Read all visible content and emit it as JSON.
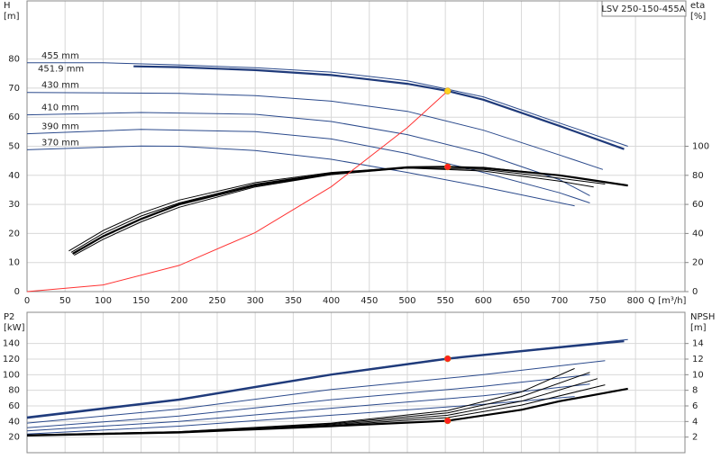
{
  "title": "LSV 250-150-455A",
  "chart_data": [
    {
      "type": "line",
      "ylabel": "H",
      "yunit": "[m]",
      "y2label": "eta",
      "y2unit": "[%]",
      "xlabel": "Q [m³/h]",
      "xlim": [
        0,
        865
      ],
      "ylim": [
        0,
        100
      ],
      "y2lim": [
        0,
        200
      ],
      "xticks": [
        0,
        50,
        100,
        150,
        200,
        250,
        300,
        350,
        400,
        450,
        500,
        550,
        600,
        650,
        700,
        750,
        800
      ],
      "yticks": [
        0,
        10,
        20,
        30,
        40,
        50,
        60,
        70,
        80
      ],
      "y2ticks": [
        0,
        20,
        40,
        60,
        80,
        100
      ],
      "grid": true,
      "series": [
        {
          "name": "455 mm",
          "color": "#2b4a8c",
          "x": [
            0,
            100,
            200,
            300,
            400,
            500,
            600,
            700,
            790
          ],
          "values": [
            78.7,
            78.7,
            78,
            77,
            75.5,
            72.5,
            67,
            58,
            50
          ]
        },
        {
          "name": "451.9 mm",
          "color": "#1f3a7a",
          "emphasis": true,
          "x": [
            140,
            200,
            300,
            400,
            500,
            553,
            600,
            700,
            785
          ],
          "values": [
            77.5,
            77.2,
            76.2,
            74.5,
            71.5,
            69,
            66,
            57,
            49
          ]
        },
        {
          "name": "430 mm",
          "color": "#2b4a8c",
          "x": [
            0,
            200,
            300,
            400,
            500,
            600,
            700,
            757
          ],
          "values": [
            68.5,
            68.2,
            67.4,
            65.5,
            62,
            55.5,
            47,
            42
          ]
        },
        {
          "name": "410 mm",
          "color": "#2b4a8c",
          "x": [
            0,
            150,
            300,
            400,
            500,
            600,
            700,
            740
          ],
          "values": [
            60.8,
            61.6,
            61,
            58.5,
            54,
            47.5,
            38.5,
            33
          ]
        },
        {
          "name": "390 mm",
          "color": "#2b4a8c",
          "x": [
            0,
            150,
            300,
            400,
            500,
            600,
            700,
            740
          ],
          "values": [
            54.3,
            55.8,
            55,
            52.5,
            47.5,
            41,
            34,
            30.5
          ]
        },
        {
          "name": "370 mm",
          "color": "#2b4a8c",
          "x": [
            0,
            150,
            200,
            300,
            400,
            500,
            600,
            720
          ],
          "values": [
            48.8,
            50.1,
            50,
            48.5,
            45.5,
            41,
            36,
            29.5
          ]
        },
        {
          "color": "#000000",
          "axis": "y2",
          "emphasis": true,
          "x": [
            60,
            100,
            150,
            200,
            300,
            400,
            500,
            553,
            600,
            700,
            790
          ],
          "values": [
            26,
            38,
            50,
            60,
            73,
            81,
            85.5,
            85.8,
            85,
            80,
            73
          ]
        },
        {
          "color": "#000000",
          "axis": "y2",
          "x": [
            55,
            100,
            150,
            200,
            300,
            400,
            500,
            600,
            700,
            780
          ],
          "values": [
            28,
            42,
            54,
            63,
            75,
            82,
            85.5,
            85.5,
            80,
            74
          ]
        },
        {
          "color": "#000000",
          "axis": "y2",
          "x": [
            58,
            100,
            150,
            200,
            300,
            400,
            500,
            600,
            700,
            760
          ],
          "values": [
            27,
            40,
            52,
            61,
            74,
            81.5,
            85,
            84,
            78,
            74
          ]
        },
        {
          "color": "#000000",
          "axis": "y2",
          "x": [
            62,
            100,
            150,
            200,
            300,
            400,
            500,
            600,
            700,
            745
          ],
          "values": [
            25,
            36,
            48,
            58,
            72,
            80.5,
            85,
            83,
            76,
            72
          ]
        },
        {
          "color": "#ff3333",
          "x": [
            0,
            100,
            200,
            300,
            400,
            500,
            553
          ],
          "values": [
            0,
            2.3,
            9,
            20.3,
            36.1,
            56.4,
            69
          ]
        }
      ],
      "points": [
        {
          "x": 553,
          "value": 69,
          "color": "#ffd21f"
        },
        {
          "x": 553,
          "value": 85.8,
          "color": "#ff2020",
          "axis": "y2"
        }
      ]
    },
    {
      "type": "line",
      "ylabel": "P2",
      "yunit": "[kW]",
      "y2label": "NPSH",
      "y2unit": "[m]",
      "xlim": [
        0,
        865
      ],
      "ylim": [
        0,
        180
      ],
      "y2lim": [
        0,
        18
      ],
      "xticks": [
        0,
        50,
        100,
        150,
        200,
        250,
        300,
        350,
        400,
        450,
        500,
        550,
        600,
        650,
        700,
        750,
        800
      ],
      "yticks": [
        20,
        40,
        60,
        80,
        100,
        120,
        140
      ],
      "y2ticks": [
        2,
        4,
        6,
        8,
        10,
        12,
        14
      ],
      "grid": true,
      "series": [
        {
          "color": "#2b4a8c",
          "x": [
            0,
            200,
            300,
            400,
            553,
            700,
            790
          ],
          "values": [
            46,
            69,
            85,
            101,
            121.5,
            136,
            145
          ]
        },
        {
          "color": "#1f3a7a",
          "emphasis": true,
          "x": [
            0,
            200,
            300,
            400,
            553,
            700,
            785
          ],
          "values": [
            44.7,
            68,
            84,
            100,
            120.5,
            135,
            143
          ]
        },
        {
          "color": "#2b4a8c",
          "x": [
            0,
            200,
            400,
            600,
            760
          ],
          "values": [
            38,
            56,
            81,
            100,
            118
          ]
        },
        {
          "color": "#2b4a8c",
          "x": [
            0,
            200,
            400,
            600,
            740
          ],
          "values": [
            32,
            47,
            68,
            85,
            100
          ]
        },
        {
          "color": "#2b4a8c",
          "x": [
            0,
            200,
            400,
            600,
            740
          ],
          "values": [
            28,
            40,
            57,
            73,
            88
          ]
        },
        {
          "color": "#2b4a8c",
          "x": [
            0,
            200,
            400,
            600,
            720
          ],
          "values": [
            24,
            34,
            48,
            62,
            72
          ]
        },
        {
          "color": "#000000",
          "axis": "y2",
          "emphasis": true,
          "x": [
            0,
            200,
            300,
            400,
            553,
            650,
            700,
            790
          ],
          "values": [
            2.2,
            2.6,
            3,
            3.4,
            4.1,
            5.5,
            6.6,
            8.2
          ]
        },
        {
          "color": "#000000",
          "axis": "y2",
          "x": [
            0,
            200,
            400,
            553,
            650,
            720
          ],
          "values": [
            2.3,
            2.7,
            3.8,
            5.4,
            7.8,
            10.8
          ]
        },
        {
          "color": "#000000",
          "axis": "y2",
          "x": [
            0,
            200,
            400,
            553,
            650,
            740
          ],
          "values": [
            2.3,
            2.7,
            3.7,
            5.1,
            7.2,
            10.3
          ]
        },
        {
          "color": "#000000",
          "axis": "y2",
          "x": [
            0,
            200,
            400,
            553,
            650,
            750
          ],
          "values": [
            2.2,
            2.6,
            3.6,
            4.8,
            6.6,
            9.5
          ]
        },
        {
          "color": "#000000",
          "axis": "y2",
          "x": [
            0,
            200,
            400,
            553,
            650,
            760
          ],
          "values": [
            2.2,
            2.6,
            3.5,
            4.5,
            6.1,
            8.7
          ]
        }
      ],
      "points": [
        {
          "x": 553,
          "value": 120.5,
          "color": "#ff2020"
        },
        {
          "x": 553,
          "value": 4.1,
          "color": "#ff2020",
          "axis": "y2"
        }
      ]
    }
  ]
}
